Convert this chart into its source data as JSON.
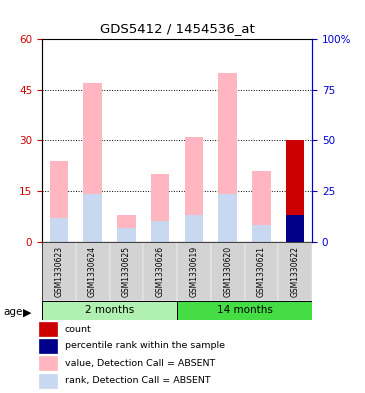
{
  "title": "GDS5412 / 1454536_at",
  "samples": [
    "GSM1330623",
    "GSM1330624",
    "GSM1330625",
    "GSM1330626",
    "GSM1330619",
    "GSM1330620",
    "GSM1330621",
    "GSM1330622"
  ],
  "value_absent": [
    24,
    47,
    8,
    20,
    31,
    50,
    21,
    0
  ],
  "rank_absent": [
    7,
    14,
    4,
    6,
    8,
    14,
    5,
    0
  ],
  "count_value": [
    0,
    0,
    0,
    0,
    0,
    0,
    0,
    30
  ],
  "count_rank": [
    0,
    0,
    0,
    0,
    0,
    0,
    0,
    8
  ],
  "ylim_left": [
    0,
    60
  ],
  "ylim_right": [
    0,
    100
  ],
  "yticks_left": [
    0,
    15,
    30,
    45,
    60
  ],
  "yticks_right": [
    0,
    25,
    50,
    75,
    100
  ],
  "ytick_labels_right": [
    "0",
    "25",
    "50",
    "75",
    "100%"
  ],
  "color_value_absent": "#FFB6C1",
  "color_rank_absent": "#C8D8F0",
  "color_count": "#CC0000",
  "color_percentile": "#00008B",
  "bg_sample": "#D3D3D3",
  "left_axis_color": "#CC0000",
  "right_axis_color": "#0000CC",
  "group1_label": "2 months",
  "group1_color": "#B0F0B0",
  "group2_label": "14 months",
  "group2_color": "#44DD44",
  "legend_items": [
    {
      "label": "count",
      "color": "#CC0000"
    },
    {
      "label": "percentile rank within the sample",
      "color": "#00008B"
    },
    {
      "label": "value, Detection Call = ABSENT",
      "color": "#FFB6C1"
    },
    {
      "label": "rank, Detection Call = ABSENT",
      "color": "#C8D8F0"
    }
  ]
}
